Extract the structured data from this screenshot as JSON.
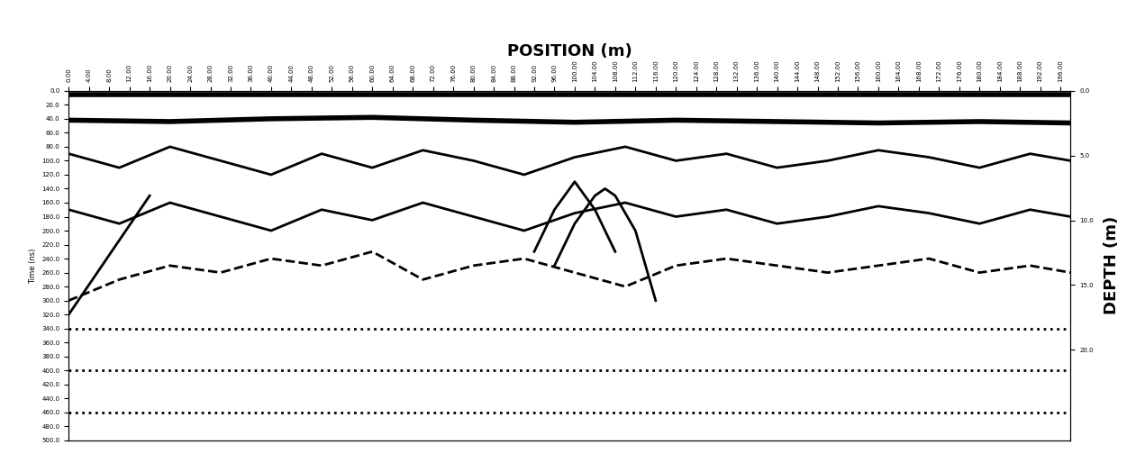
{
  "chart_data": {
    "type": "line",
    "title": "POSITION (m)",
    "y_label": "Time (ns)",
    "y2_label": "DEPTH (m)",
    "color": "#000000",
    "grid": false,
    "xlim": [
      0,
      198
    ],
    "ylim": [
      500,
      0
    ],
    "y2lim": [
      27,
      0
    ],
    "xticks": [
      {
        "value": 0,
        "label": "0.00"
      },
      {
        "value": 4,
        "label": "4.00"
      },
      {
        "value": 8,
        "label": "8.00"
      },
      {
        "value": 12,
        "label": "12.00"
      },
      {
        "value": 16,
        "label": "16.00"
      },
      {
        "value": 20,
        "label": "20.00"
      },
      {
        "value": 24,
        "label": "24.00"
      },
      {
        "value": 28,
        "label": "28.00"
      },
      {
        "value": 32,
        "label": "32.00"
      },
      {
        "value": 36,
        "label": "36.00"
      },
      {
        "value": 40,
        "label": "40.00"
      },
      {
        "value": 44,
        "label": "44.00"
      },
      {
        "value": 48,
        "label": "48.00"
      },
      {
        "value": 52,
        "label": "52.00"
      },
      {
        "value": 56,
        "label": "56.00"
      },
      {
        "value": 60,
        "label": "60.00"
      },
      {
        "value": 64,
        "label": "64.00"
      },
      {
        "value": 68,
        "label": "68.00"
      },
      {
        "value": 72,
        "label": "72.00"
      },
      {
        "value": 76,
        "label": "76.00"
      },
      {
        "value": 80,
        "label": "80.00"
      },
      {
        "value": 84,
        "label": "84.00"
      },
      {
        "value": 88,
        "label": "88.00"
      },
      {
        "value": 92,
        "label": "92.00"
      },
      {
        "value": 96,
        "label": "96.00"
      },
      {
        "value": 100,
        "label": "100.00"
      },
      {
        "value": 104,
        "label": "104.00"
      },
      {
        "value": 108,
        "label": "108.00"
      },
      {
        "value": 112,
        "label": "112.00"
      },
      {
        "value": 116,
        "label": "116.00"
      },
      {
        "value": 120,
        "label": "120.00"
      },
      {
        "value": 124,
        "label": "124.00"
      },
      {
        "value": 128,
        "label": "128.00"
      },
      {
        "value": 132,
        "label": "132.00"
      },
      {
        "value": 136,
        "label": "136.00"
      },
      {
        "value": 140,
        "label": "140.00"
      },
      {
        "value": 144,
        "label": "144.00"
      },
      {
        "value": 148,
        "label": "148.00"
      },
      {
        "value": 152,
        "label": "152.00"
      },
      {
        "value": 156,
        "label": "156.00"
      },
      {
        "value": 160,
        "label": "160.00"
      },
      {
        "value": 164,
        "label": "164.00"
      },
      {
        "value": 168,
        "label": "168.00"
      },
      {
        "value": 172,
        "label": "172.00"
      },
      {
        "value": 176,
        "label": "176.00"
      },
      {
        "value": 180,
        "label": "180.00"
      },
      {
        "value": 184,
        "label": "184.00"
      },
      {
        "value": 188,
        "label": "188.00"
      },
      {
        "value": 192,
        "label": "192.00"
      },
      {
        "value": 196,
        "label": "196.00"
      }
    ],
    "yticks": [
      {
        "value": 0,
        "label": "0.0"
      },
      {
        "value": 20,
        "label": "20.0"
      },
      {
        "value": 40,
        "label": "40.0"
      },
      {
        "value": 60,
        "label": "60.0"
      },
      {
        "value": 80,
        "label": "80.0"
      },
      {
        "value": 100,
        "label": "100.0"
      },
      {
        "value": 120,
        "label": "120.0"
      },
      {
        "value": 140,
        "label": "140.0"
      },
      {
        "value": 160,
        "label": "160.0"
      },
      {
        "value": 180,
        "label": "180.0"
      },
      {
        "value": 200,
        "label": "200.0"
      },
      {
        "value": 220,
        "label": "220.0"
      },
      {
        "value": 240,
        "label": "240.0"
      },
      {
        "value": 260,
        "label": "260.0"
      },
      {
        "value": 280,
        "label": "280.0"
      },
      {
        "value": 300,
        "label": "300.0"
      },
      {
        "value": 320,
        "label": "320.0"
      },
      {
        "value": 340,
        "label": "340.0"
      },
      {
        "value": 360,
        "label": "360.0"
      },
      {
        "value": 380,
        "label": "380.0"
      },
      {
        "value": 400,
        "label": "400.0"
      },
      {
        "value": 420,
        "label": "420.0"
      },
      {
        "value": 440,
        "label": "440.0"
      },
      {
        "value": 460,
        "label": "460.0"
      },
      {
        "value": 480,
        "label": "480.0"
      },
      {
        "value": 500,
        "label": "500.0"
      }
    ],
    "y2ticks": [
      {
        "value": 0,
        "label": "0.0"
      },
      {
        "value": 5,
        "label": "5.0"
      },
      {
        "value": 10,
        "label": "10.0"
      },
      {
        "value": 15,
        "label": "15.0"
      },
      {
        "value": 20,
        "label": "20.0"
      }
    ],
    "series": [
      {
        "x": [
          0,
          198
        ],
        "values": [
          6,
          6
        ],
        "line_style": "solid"
      },
      {
        "x": [
          0,
          20,
          40,
          60,
          80,
          100,
          120,
          140,
          160,
          180,
          198
        ],
        "values": [
          42,
          44,
          40,
          38,
          42,
          45,
          42,
          44,
          46,
          44,
          46
        ],
        "line_style": "solid"
      },
      {
        "x": [
          0,
          10,
          20,
          30,
          40,
          50,
          60,
          70,
          80,
          90,
          100,
          110,
          120,
          130,
          140,
          150,
          160,
          170,
          180,
          190,
          198
        ],
        "values": [
          90,
          110,
          80,
          100,
          120,
          90,
          110,
          85,
          100,
          120,
          95,
          80,
          100,
          90,
          110,
          100,
          85,
          95,
          110,
          90,
          100
        ],
        "line_style": "solid"
      },
      {
        "x": [
          0,
          10,
          20,
          30,
          40,
          50,
          60,
          70,
          80,
          90,
          100,
          110,
          120,
          130,
          140,
          150,
          160,
          170,
          180,
          190,
          198
        ],
        "values": [
          170,
          190,
          160,
          180,
          200,
          170,
          185,
          160,
          180,
          200,
          175,
          160,
          180,
          170,
          190,
          180,
          165,
          175,
          190,
          170,
          180
        ],
        "line_style": "solid"
      },
      {
        "x": [
          0,
          10,
          20,
          30,
          40,
          50,
          60,
          70,
          80,
          90,
          100,
          110,
          120,
          130,
          140,
          150,
          160,
          170,
          180,
          190,
          198
        ],
        "values": [
          300,
          270,
          250,
          260,
          240,
          250,
          230,
          270,
          250,
          240,
          260,
          280,
          250,
          240,
          250,
          260,
          250,
          240,
          260,
          250,
          260
        ],
        "line_style": "dashed"
      },
      {
        "x": [
          92,
          96,
          100,
          104,
          108
        ],
        "values": [
          230,
          170,
          130,
          170,
          230
        ],
        "line_style": "solid"
      },
      {
        "x": [
          96,
          100,
          104,
          106,
          108,
          112,
          116
        ],
        "values": [
          250,
          190,
          150,
          140,
          150,
          200,
          300
        ],
        "line_style": "solid"
      },
      {
        "x": [
          0,
          16
        ],
        "values": [
          320,
          150
        ],
        "line_style": "solid"
      },
      {
        "x": [
          0,
          198
        ],
        "values": [
          340,
          340
        ],
        "line_style": "dotted"
      },
      {
        "x": [
          0,
          198
        ],
        "values": [
          400,
          400
        ],
        "line_style": "dotted"
      },
      {
        "x": [
          0,
          198
        ],
        "values": [
          460,
          460
        ],
        "line_style": "dotted"
      }
    ]
  }
}
